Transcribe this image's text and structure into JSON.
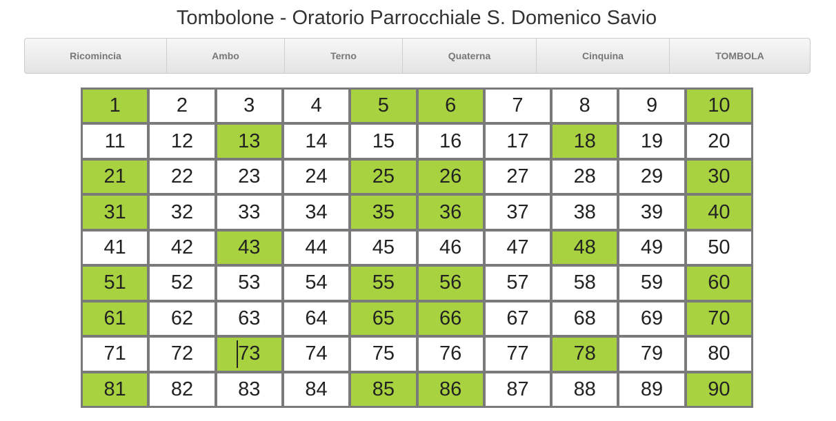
{
  "header": {
    "title": "Tombolone - Oratorio Parrocchiale S. Domenico Savio"
  },
  "toolbar": {
    "buttons": [
      {
        "label": "Ricomincia"
      },
      {
        "label": "Ambo"
      },
      {
        "label": "Terno"
      },
      {
        "label": "Quaterna"
      },
      {
        "label": "Cinquina"
      },
      {
        "label": "TOMBOLA"
      }
    ]
  },
  "board": {
    "highlight_color": "#a8d23f",
    "numbers": [
      1,
      2,
      3,
      4,
      5,
      6,
      7,
      8,
      9,
      10,
      11,
      12,
      13,
      14,
      15,
      16,
      17,
      18,
      19,
      20,
      21,
      22,
      23,
      24,
      25,
      26,
      27,
      28,
      29,
      30,
      31,
      32,
      33,
      34,
      35,
      36,
      37,
      38,
      39,
      40,
      41,
      42,
      43,
      44,
      45,
      46,
      47,
      48,
      49,
      50,
      51,
      52,
      53,
      54,
      55,
      56,
      57,
      58,
      59,
      60,
      61,
      62,
      63,
      64,
      65,
      66,
      67,
      68,
      69,
      70,
      71,
      72,
      73,
      74,
      75,
      76,
      77,
      78,
      79,
      80,
      81,
      82,
      83,
      84,
      85,
      86,
      87,
      88,
      89,
      90
    ],
    "drawn": [
      1,
      5,
      6,
      10,
      13,
      18,
      21,
      25,
      26,
      30,
      31,
      35,
      36,
      40,
      43,
      48,
      51,
      55,
      56,
      60,
      61,
      65,
      66,
      70,
      73,
      78,
      81,
      85,
      86,
      90
    ]
  }
}
